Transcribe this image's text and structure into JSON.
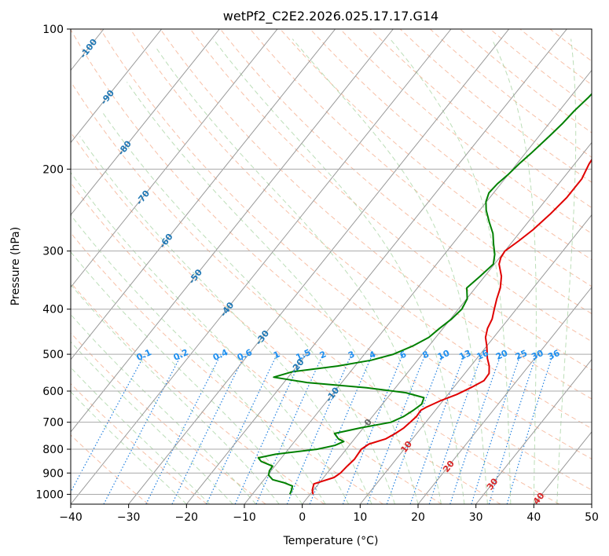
{
  "chart_data": {
    "type": "line",
    "chart_kind": "skew-T log-P diagram",
    "title": "wetPf2_C2E2.2026.025.17.17.G14",
    "xlabel": "Temperature (°C)",
    "ylabel": "Pressure (hPa)",
    "xlim": [
      -40,
      50
    ],
    "ylim": [
      1050,
      100
    ],
    "y_scale": "log",
    "grid": true,
    "x_ticks": [
      -40,
      -30,
      -20,
      -10,
      0,
      10,
      20,
      30,
      40,
      50
    ],
    "x_tick_labels": [
      "−40",
      "−30",
      "−20",
      "−10",
      "0",
      "10",
      "20",
      "30",
      "40",
      "50"
    ],
    "y_ticks": [
      100,
      200,
      300,
      400,
      500,
      600,
      700,
      800,
      900,
      1000
    ],
    "y_tick_labels": [
      "100",
      "200",
      "300",
      "400",
      "500",
      "600",
      "700",
      "800",
      "900",
      "1000"
    ],
    "colors": {
      "temperature": "#e00000",
      "dewpoint": "#008000",
      "isotherm": "#999999",
      "dry_adiabat": "#f4a582",
      "moist_adiabat": "#a6d3a0",
      "mixing_ratio": "#1f7fdf",
      "isobar_grid": "#aaaaaa"
    },
    "series": [
      {
        "name": "temperature",
        "points": [
          [
            1000,
            0.5
          ],
          [
            980,
            -0.2
          ],
          [
            950,
            -0.8
          ],
          [
            920,
            1.8
          ],
          [
            900,
            2.3
          ],
          [
            870,
            2.5
          ],
          [
            840,
            2.8
          ],
          [
            800,
            2.6
          ],
          [
            780,
            3.2
          ],
          [
            760,
            5.4
          ],
          [
            740,
            6.3
          ],
          [
            720,
            7.0
          ],
          [
            700,
            7.3
          ],
          [
            680,
            7.6
          ],
          [
            660,
            7.5
          ],
          [
            650,
            8.0
          ],
          [
            630,
            9.5
          ],
          [
            610,
            11.5
          ],
          [
            590,
            13.0
          ],
          [
            570,
            14.3
          ],
          [
            550,
            14.2
          ],
          [
            530,
            13.2
          ],
          [
            510,
            11.8
          ],
          [
            480,
            10.0
          ],
          [
            460,
            8.6
          ],
          [
            440,
            7.7
          ],
          [
            420,
            7.2
          ],
          [
            400,
            6.2
          ],
          [
            380,
            5.2
          ],
          [
            360,
            4.3
          ],
          [
            340,
            2.9
          ],
          [
            320,
            0.8
          ],
          [
            310,
            0.2
          ],
          [
            300,
            0.0
          ],
          [
            285,
            1.0
          ],
          [
            270,
            1.9
          ],
          [
            250,
            2.7
          ],
          [
            230,
            3.3
          ],
          [
            210,
            3.3
          ],
          [
            195,
            2.5
          ],
          [
            185,
            2.2
          ],
          [
            170,
            1.9
          ],
          [
            155,
            2.2
          ],
          [
            140,
            2.6
          ],
          [
            125,
            4.3
          ],
          [
            112,
            5.7
          ],
          [
            105,
            6.3
          ],
          [
            100,
            6.6
          ]
        ]
      },
      {
        "name": "dewpoint",
        "points": [
          [
            1000,
            -3.5
          ],
          [
            980,
            -3.8
          ],
          [
            960,
            -4.2
          ],
          [
            945,
            -6.0
          ],
          [
            930,
            -8.5
          ],
          [
            910,
            -9.8
          ],
          [
            890,
            -10.3
          ],
          [
            870,
            -10.4
          ],
          [
            850,
            -13.0
          ],
          [
            835,
            -14.0
          ],
          [
            820,
            -11.5
          ],
          [
            800,
            -5.0
          ],
          [
            785,
            -2.5
          ],
          [
            770,
            -1.5
          ],
          [
            760,
            -2.8
          ],
          [
            740,
            -4.2
          ],
          [
            720,
            -0.5
          ],
          [
            700,
            4.0
          ],
          [
            680,
            5.4
          ],
          [
            660,
            6.2
          ],
          [
            640,
            6.8
          ],
          [
            620,
            6.3
          ],
          [
            605,
            2.5
          ],
          [
            590,
            -5.0
          ],
          [
            575,
            -16.0
          ],
          [
            560,
            -22.5
          ],
          [
            545,
            -20.0
          ],
          [
            530,
            -13.0
          ],
          [
            515,
            -8.0
          ],
          [
            500,
            -5.0
          ],
          [
            480,
            -2.8
          ],
          [
            460,
            -1.2
          ],
          [
            440,
            -0.6
          ],
          [
            420,
            0.2
          ],
          [
            400,
            0.6
          ],
          [
            380,
            0.1
          ],
          [
            360,
            -1.5
          ],
          [
            340,
            -0.8
          ],
          [
            320,
            -0.2
          ],
          [
            305,
            -1.3
          ],
          [
            290,
            -2.9
          ],
          [
            275,
            -4.5
          ],
          [
            260,
            -6.7
          ],
          [
            245,
            -8.9
          ],
          [
            235,
            -10.1
          ],
          [
            225,
            -10.8
          ],
          [
            215,
            -10.6
          ],
          [
            205,
            -10.0
          ],
          [
            195,
            -9.6
          ],
          [
            185,
            -9.0
          ],
          [
            170,
            -8.2
          ],
          [
            160,
            -7.7
          ],
          [
            150,
            -7.4
          ],
          [
            140,
            -6.8
          ],
          [
            130,
            -6.4
          ],
          [
            120,
            -6.2
          ],
          [
            112,
            -5.6
          ],
          [
            106,
            -5.5
          ],
          [
            100,
            -5.8
          ]
        ]
      }
    ],
    "isotherm_labels": [
      "-100",
      "-90",
      "-80",
      "-70",
      "-60",
      "-50",
      "-40",
      "-30",
      "-20",
      "-10",
      "0",
      "10",
      "20",
      "30",
      "40"
    ],
    "mixing_ratio_labels": [
      "0.1",
      "0.2",
      "0.4",
      "0.6",
      "1",
      "1.5",
      "2",
      "3",
      "4",
      "6",
      "8",
      "10",
      "13",
      "16",
      "20",
      "25",
      "30",
      "36"
    ]
  }
}
